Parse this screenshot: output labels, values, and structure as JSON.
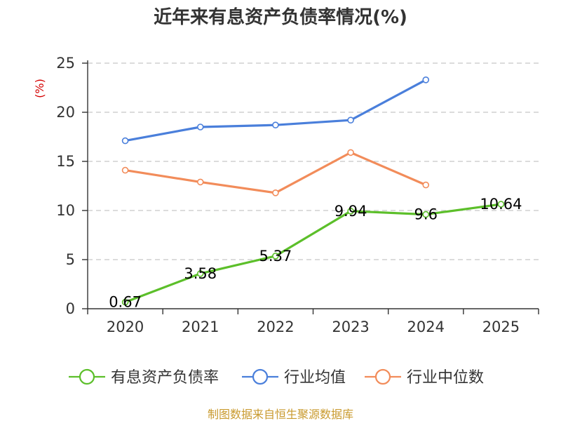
{
  "chart_data": {
    "type": "line",
    "title": "近年来有息资产负债率情况(%)",
    "ylabel": "(%)",
    "xlabel": "",
    "categories": [
      "2020",
      "2021",
      "2022",
      "2023",
      "2024",
      "2025"
    ],
    "ylim": [
      0,
      25
    ],
    "yticks": [
      0,
      5,
      10,
      15,
      20,
      25
    ],
    "grid": true,
    "legend_position": "bottom",
    "series": [
      {
        "name": "有息资产负债率",
        "color": "#5cbf2a",
        "values": [
          0.67,
          3.58,
          5.37,
          9.94,
          9.6,
          10.64
        ],
        "labels": [
          "0.67",
          "3.58",
          "5.37",
          "9.94",
          "9.6",
          "10.64"
        ]
      },
      {
        "name": "行业均值",
        "color": "#4a7fdb",
        "values": [
          17.1,
          18.5,
          18.7,
          19.2,
          23.3,
          null
        ]
      },
      {
        "name": "行业中位数",
        "color": "#f28c5a",
        "values": [
          14.1,
          12.9,
          11.8,
          15.9,
          12.6,
          null
        ]
      }
    ],
    "source": "制图数据来自恒生聚源数据库"
  }
}
